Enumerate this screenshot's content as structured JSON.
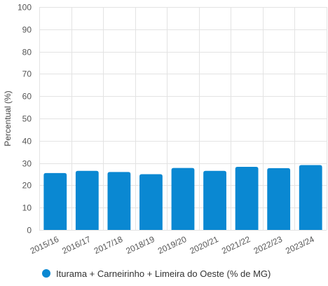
{
  "chart_data": {
    "type": "bar",
    "categories": [
      "2015/16",
      "2016/17",
      "2017/18",
      "2018/19",
      "2019/20",
      "2020/21",
      "2021/22",
      "2022/23",
      "2023/24"
    ],
    "series": [
      {
        "name": "Iturama + Carneirinho + Limeira do Oeste (% de MG)",
        "values": [
          25.5,
          26.5,
          26.0,
          25.0,
          27.8,
          26.5,
          28.3,
          27.7,
          29.1
        ],
        "color": "#0a88d2"
      }
    ],
    "ylabel": "Percentual (%)",
    "ylim": [
      0,
      100
    ],
    "yticks": [
      0,
      10,
      20,
      30,
      40,
      50,
      60,
      70,
      80,
      90,
      100
    ],
    "grid": true,
    "legend_position": "bottom-left"
  }
}
